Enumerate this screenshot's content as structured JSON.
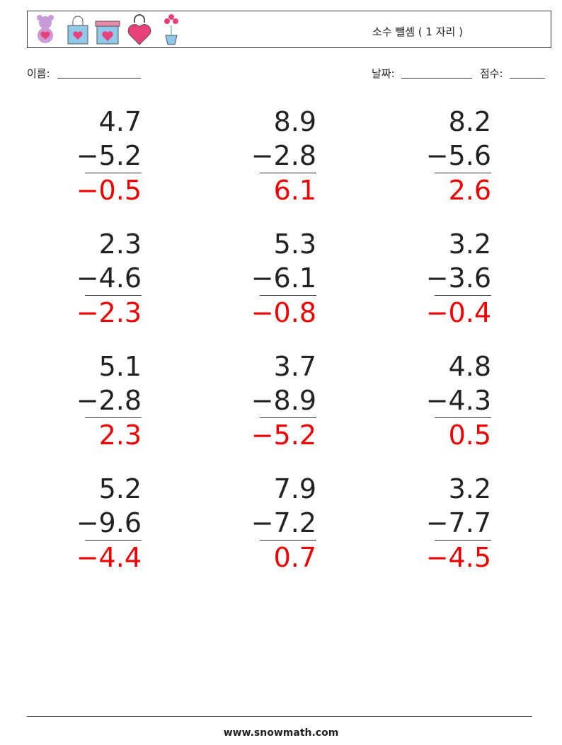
{
  "header": {
    "title": "소수 뺄셈 ( 1 자리 )"
  },
  "fields": {
    "name": "이름:",
    "date": "날짜:",
    "score": "점수:"
  },
  "problems": [
    {
      "top": "4.7",
      "bottom": "−5.2",
      "answer": "−0.5"
    },
    {
      "top": "8.9",
      "bottom": "−2.8",
      "answer": "6.1"
    },
    {
      "top": "8.2",
      "bottom": "−5.6",
      "answer": "2.6"
    },
    {
      "top": "2.3",
      "bottom": "−4.6",
      "answer": "−2.3"
    },
    {
      "top": "5.3",
      "bottom": "−6.1",
      "answer": "−0.8"
    },
    {
      "top": "3.2",
      "bottom": "−3.6",
      "answer": "−0.4"
    },
    {
      "top": "5.1",
      "bottom": "−2.8",
      "answer": "2.3"
    },
    {
      "top": "3.7",
      "bottom": "−8.9",
      "answer": "−5.2"
    },
    {
      "top": "4.8",
      "bottom": "−4.3",
      "answer": "0.5"
    },
    {
      "top": "5.2",
      "bottom": "−9.6",
      "answer": "−4.4"
    },
    {
      "top": "7.9",
      "bottom": "−7.2",
      "answer": "0.7"
    },
    {
      "top": "3.2",
      "bottom": "−7.7",
      "answer": "−4.5"
    }
  ],
  "footer": {
    "site": "www.snowmath.com"
  }
}
